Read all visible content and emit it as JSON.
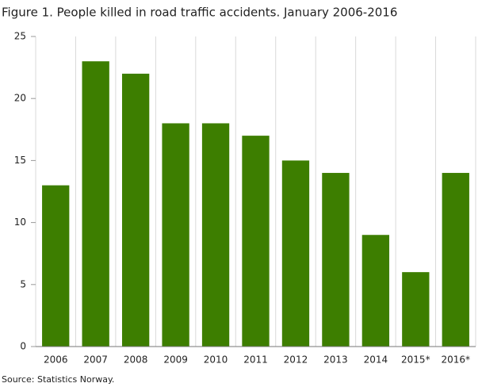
{
  "chart_data": {
    "type": "bar",
    "title": "Figure 1. People killed in road traffic accidents. January 2006-2016",
    "categories": [
      "2006",
      "2007",
      "2008",
      "2009",
      "2010",
      "2011",
      "2012",
      "2013",
      "2014",
      "2015*",
      "2016*"
    ],
    "values": [
      13,
      23,
      22,
      18,
      18,
      17,
      15,
      14,
      9,
      6,
      14
    ],
    "color": "#3d7e00",
    "ylim": [
      0,
      25
    ],
    "yticks": [
      0,
      5,
      10,
      15,
      20,
      25
    ],
    "source": "Source: Statistics Norway."
  }
}
